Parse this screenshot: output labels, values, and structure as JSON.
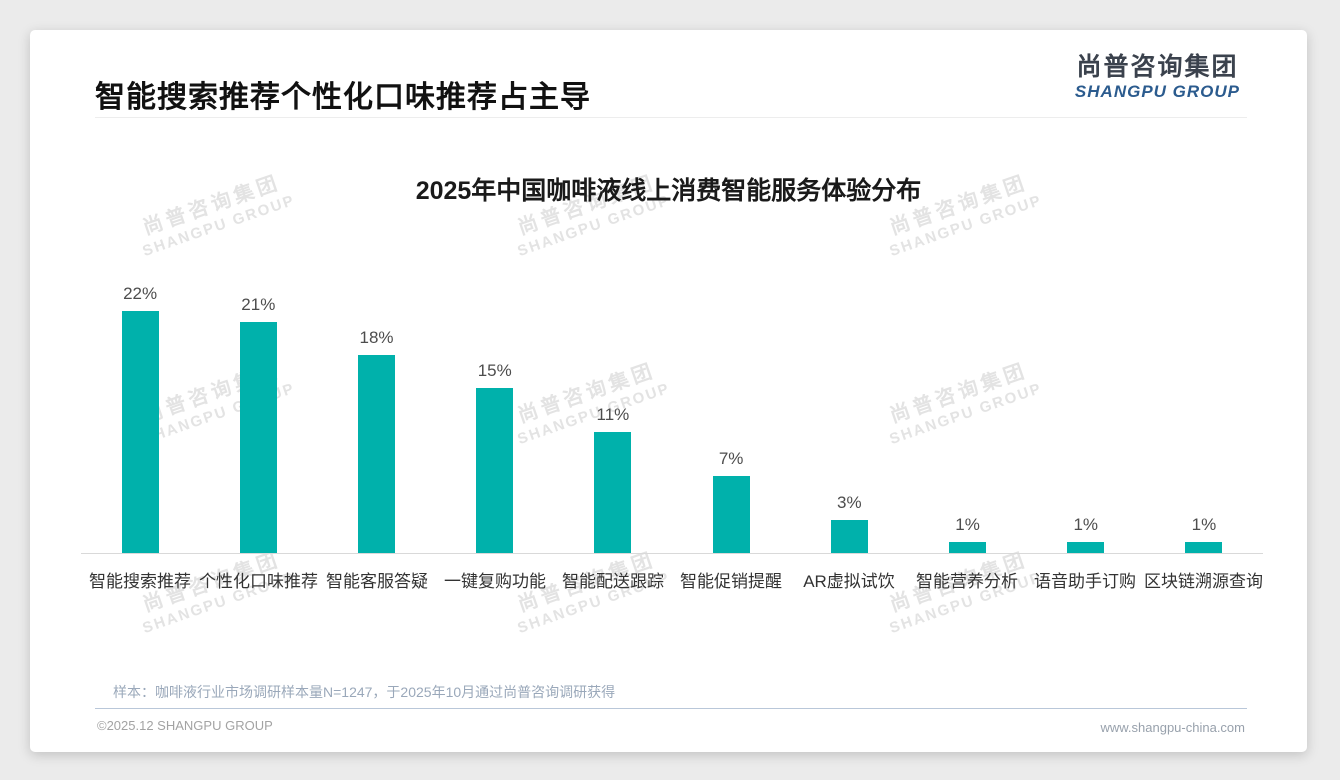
{
  "page": {
    "title": "智能搜索推荐个性化口味推荐占主导"
  },
  "logo": {
    "name_cn": "尚普咨询集团",
    "name_en": "SHANGPU GROUP",
    "color_cn": "#3b424d",
    "color_en": "#2b5b8e"
  },
  "watermark": {
    "line1": "尚普咨询集团",
    "line2": "SHANGPU GROUP"
  },
  "chart_data": {
    "type": "bar",
    "title": "2025年中国咖啡液线上消费智能服务体验分布",
    "categories": [
      "智能搜索推荐",
      "个性化口味推荐",
      "智能客服答疑",
      "一键复购功能",
      "智能配送跟踪",
      "智能促销提醒",
      "AR虚拟试饮",
      "智能营养分析",
      "语音助手订购",
      "区块链溯源查询"
    ],
    "values": [
      22,
      21,
      18,
      15,
      11,
      7,
      3,
      1,
      1,
      1
    ],
    "value_suffix": "%",
    "bar_color": "#00b1ab",
    "xlabel": "",
    "ylabel": "",
    "ylim": [
      0,
      22
    ],
    "grid": false,
    "legend": "none",
    "value_labels_position": "above-bars"
  },
  "note": {
    "text": "样本：咖啡液行业市场调研样本量N=1247，于2025年10月通过尚普咨询调研获得"
  },
  "footer": {
    "left": "©2025.12 SHANGPU GROUP",
    "right": "www.shangpu-china.com"
  }
}
